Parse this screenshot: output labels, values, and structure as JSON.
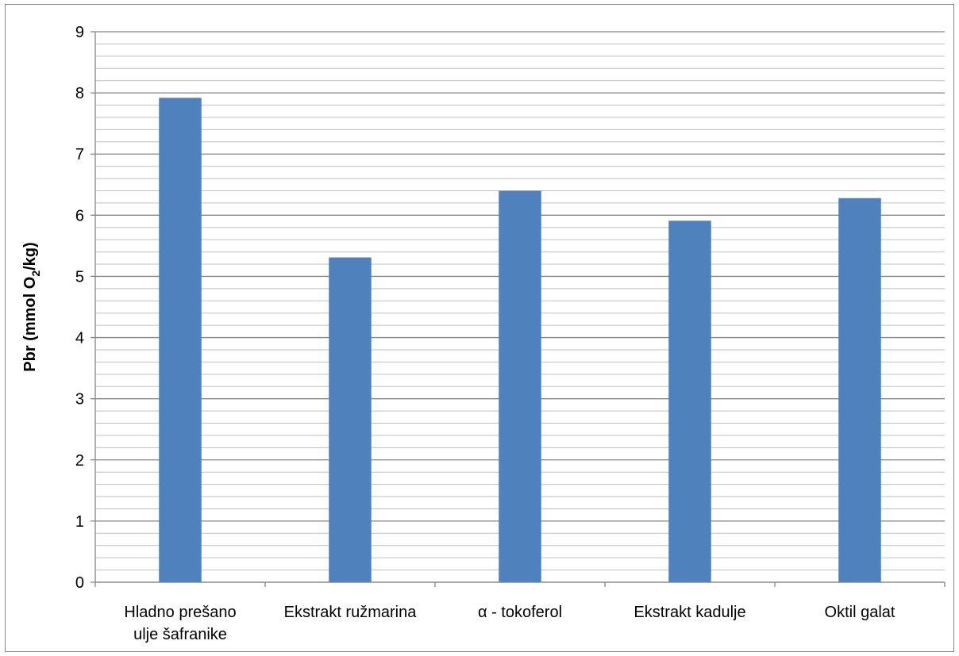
{
  "chart_data": {
    "type": "bar",
    "categories": [
      [
        "Hladno prešano",
        "ulje šafranike"
      ],
      [
        "Ekstrakt ružmarina"
      ],
      [
        "α - tokoferol"
      ],
      [
        "Ekstrakt kadulje"
      ],
      [
        "Oktil galat"
      ]
    ],
    "values": [
      7.92,
      5.31,
      6.4,
      5.91,
      6.28
    ],
    "ylabel": {
      "main": "Pbr (mmol O",
      "subscript": "2",
      "suffix": "/kg)"
    },
    "ylim": [
      0,
      9
    ],
    "yticks": [
      "0",
      "1",
      "2",
      "3",
      "4",
      "5",
      "6",
      "7",
      "8",
      "9"
    ],
    "major_step": 1,
    "minor_step": 0.2,
    "grid": true,
    "legend": "none",
    "bar_color": "#4F81BD",
    "gridline_color": "#868686"
  }
}
